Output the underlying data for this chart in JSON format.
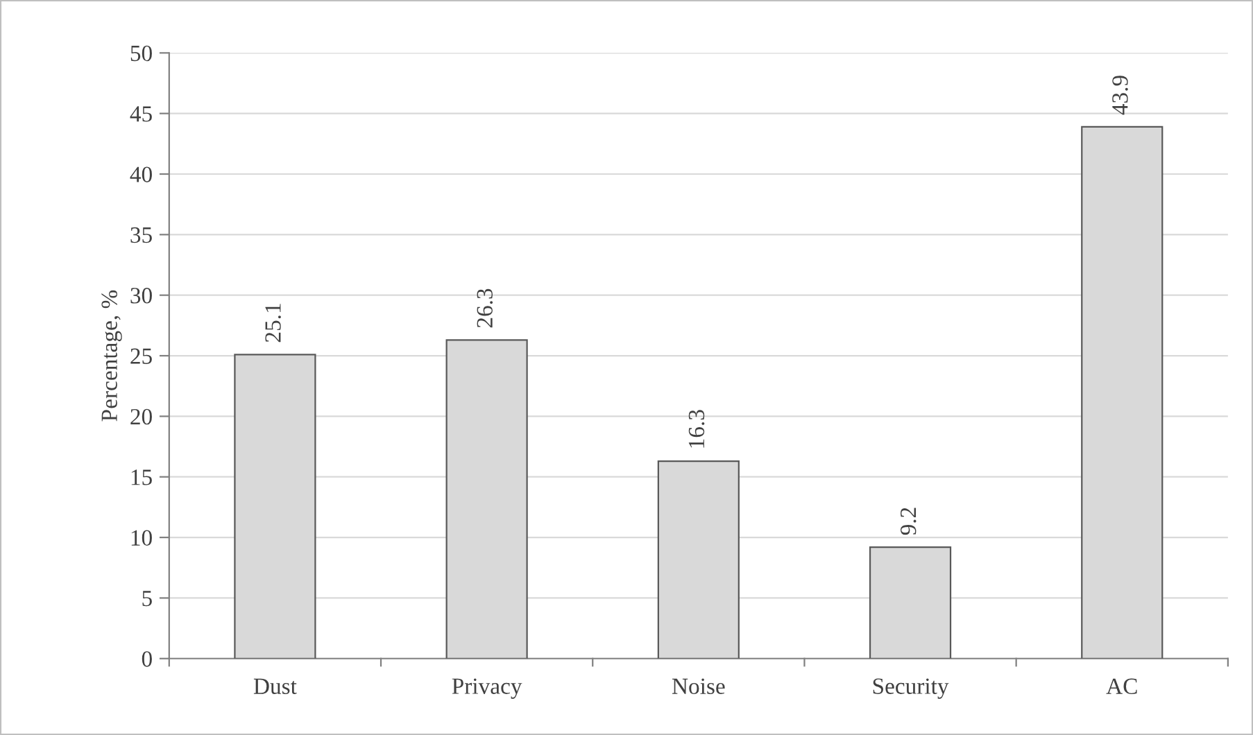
{
  "chart_data": {
    "type": "bar",
    "ylabel": "Percentage, %",
    "categories": [
      "Dust",
      "Privacy",
      "Noise",
      "Security",
      "AC"
    ],
    "values": [
      25.1,
      26.3,
      16.3,
      9.2,
      43.9
    ],
    "color": "#d9d9d9",
    "ylim": [
      0,
      50
    ],
    "yticks": [
      0,
      5,
      10,
      15,
      20,
      25,
      30,
      35,
      40,
      45,
      50
    ],
    "grid": "y",
    "data_labels": true,
    "legend": false
  }
}
